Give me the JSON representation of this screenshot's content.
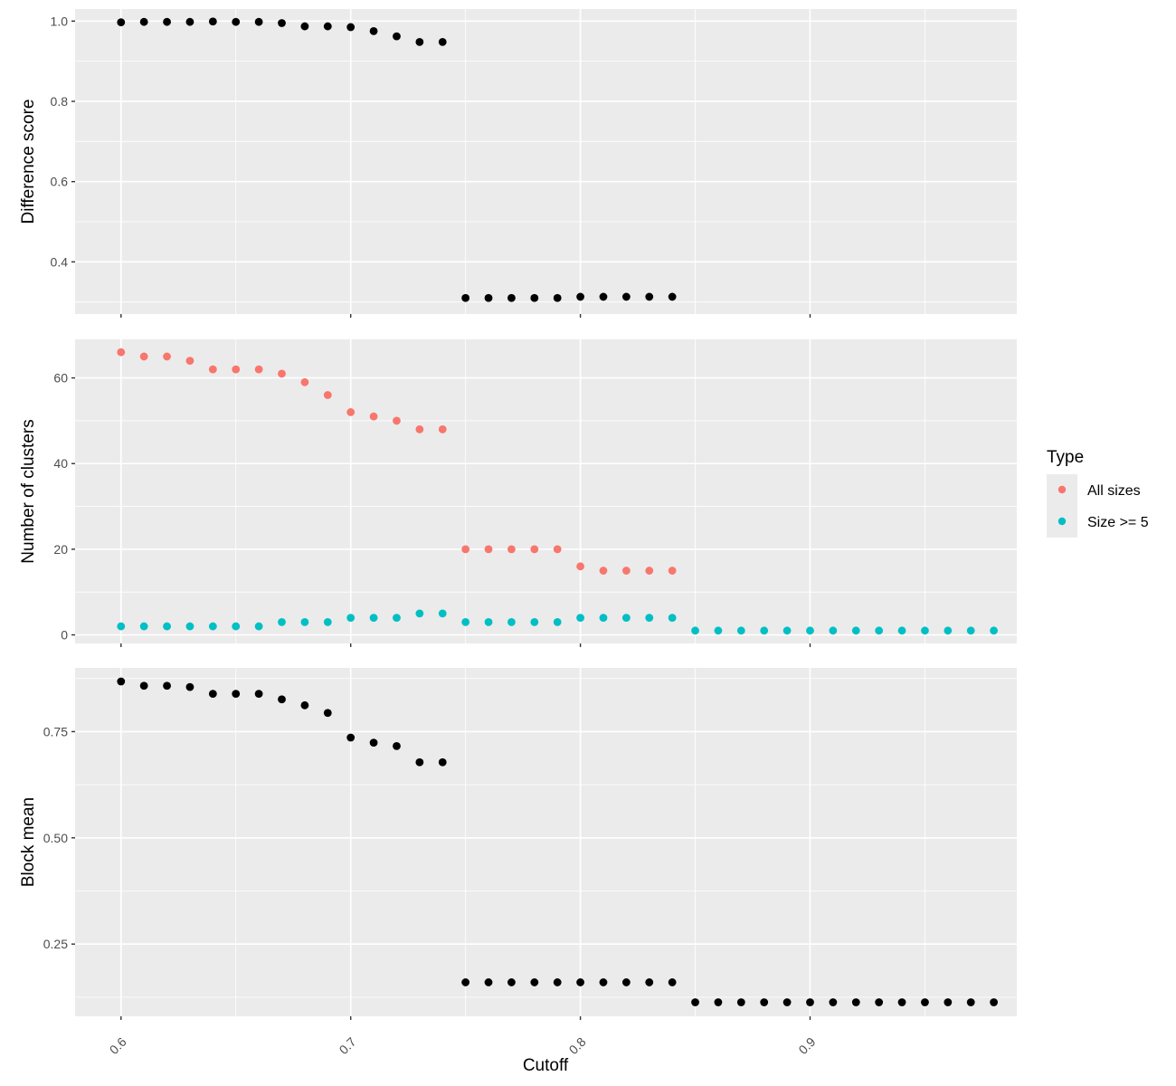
{
  "chart_data": {
    "type": "scatter",
    "xlabel": "Cutoff",
    "xlim": [
      0.58,
      0.99
    ],
    "x_ticks": [
      "0.6",
      "0.7",
      "0.8",
      "0.9"
    ],
    "x_tick_values": [
      0.6,
      0.7,
      0.8,
      0.9
    ],
    "grid": true,
    "legend": {
      "title": "Type",
      "position": "right",
      "entries": [
        {
          "label": "All sizes",
          "color": "#F8766D"
        },
        {
          "label": "Size >= 5",
          "color": "#00BFC4"
        }
      ]
    },
    "panels": [
      {
        "ylabel": "Difference score",
        "ylim": [
          0.27,
          1.03
        ],
        "y_ticks": [
          "0.4",
          "0.6",
          "0.8",
          "1.0"
        ],
        "y_tick_values": [
          0.4,
          0.6,
          0.8,
          1.0
        ],
        "series": [
          {
            "color": "#000000",
            "x": [
              0.6,
              0.61,
              0.62,
              0.63,
              0.64,
              0.65,
              0.66,
              0.67,
              0.68,
              0.69,
              0.7,
              0.71,
              0.72,
              0.73,
              0.74,
              0.75,
              0.76,
              0.77,
              0.78,
              0.79,
              0.8,
              0.81,
              0.82,
              0.83,
              0.84
            ],
            "y": [
              0.997,
              0.998,
              0.998,
              0.998,
              0.999,
              0.998,
              0.998,
              0.995,
              0.987,
              0.987,
              0.985,
              0.975,
              0.962,
              0.948,
              0.948,
              0.31,
              0.31,
              0.31,
              0.31,
              0.31,
              0.313,
              0.313,
              0.313,
              0.313,
              0.313
            ]
          }
        ]
      },
      {
        "ylabel": "Number of clusters",
        "ylim": [
          -2,
          69
        ],
        "y_ticks": [
          "0",
          "20",
          "40",
          "60"
        ],
        "y_tick_values": [
          0,
          20,
          40,
          60
        ],
        "series": [
          {
            "name": "All sizes",
            "color": "#F8766D",
            "x": [
              0.6,
              0.61,
              0.62,
              0.63,
              0.64,
              0.65,
              0.66,
              0.67,
              0.68,
              0.69,
              0.7,
              0.71,
              0.72,
              0.73,
              0.74,
              0.75,
              0.76,
              0.77,
              0.78,
              0.79,
              0.8,
              0.81,
              0.82,
              0.83,
              0.84
            ],
            "y": [
              66,
              65,
              65,
              64,
              62,
              62,
              62,
              61,
              59,
              56,
              52,
              51,
              50,
              48,
              48,
              20,
              20,
              20,
              20,
              20,
              16,
              15,
              15,
              15,
              15
            ]
          },
          {
            "name": "Size >= 5",
            "color": "#00BFC4",
            "x": [
              0.6,
              0.61,
              0.62,
              0.63,
              0.64,
              0.65,
              0.66,
              0.67,
              0.68,
              0.69,
              0.7,
              0.71,
              0.72,
              0.73,
              0.74,
              0.75,
              0.76,
              0.77,
              0.78,
              0.79,
              0.8,
              0.81,
              0.82,
              0.83,
              0.84,
              0.85,
              0.86,
              0.87,
              0.88,
              0.89,
              0.9,
              0.91,
              0.92,
              0.93,
              0.94,
              0.95,
              0.96,
              0.97,
              0.98
            ],
            "y": [
              2,
              2,
              2,
              2,
              2,
              2,
              2,
              3,
              3,
              3,
              4,
              4,
              4,
              5,
              5,
              3,
              3,
              3,
              3,
              3,
              4,
              4,
              4,
              4,
              4,
              1,
              1,
              1,
              1,
              1,
              1,
              1,
              1,
              1,
              1,
              1,
              1,
              1,
              1
            ]
          }
        ]
      },
      {
        "ylabel": "Block mean",
        "ylim": [
          0.08,
          0.9
        ],
        "y_ticks": [
          "0.25",
          "0.50",
          "0.75"
        ],
        "y_tick_values": [
          0.25,
          0.5,
          0.75
        ],
        "series": [
          {
            "color": "#000000",
            "x": [
              0.6,
              0.61,
              0.62,
              0.63,
              0.64,
              0.65,
              0.66,
              0.67,
              0.68,
              0.69,
              0.7,
              0.71,
              0.72,
              0.73,
              0.74,
              0.75,
              0.76,
              0.77,
              0.78,
              0.79,
              0.8,
              0.81,
              0.82,
              0.83,
              0.84,
              0.85,
              0.86,
              0.87,
              0.88,
              0.89,
              0.9,
              0.91,
              0.92,
              0.93,
              0.94,
              0.95,
              0.96,
              0.97,
              0.98
            ],
            "y": [
              0.868,
              0.858,
              0.858,
              0.855,
              0.839,
              0.839,
              0.839,
              0.826,
              0.812,
              0.794,
              0.736,
              0.724,
              0.716,
              0.678,
              0.678,
              0.16,
              0.16,
              0.16,
              0.16,
              0.16,
              0.16,
              0.16,
              0.16,
              0.16,
              0.16,
              0.113,
              0.113,
              0.113,
              0.113,
              0.113,
              0.113,
              0.113,
              0.113,
              0.113,
              0.113,
              0.113,
              0.113,
              0.113,
              0.113
            ]
          }
        ]
      }
    ]
  }
}
